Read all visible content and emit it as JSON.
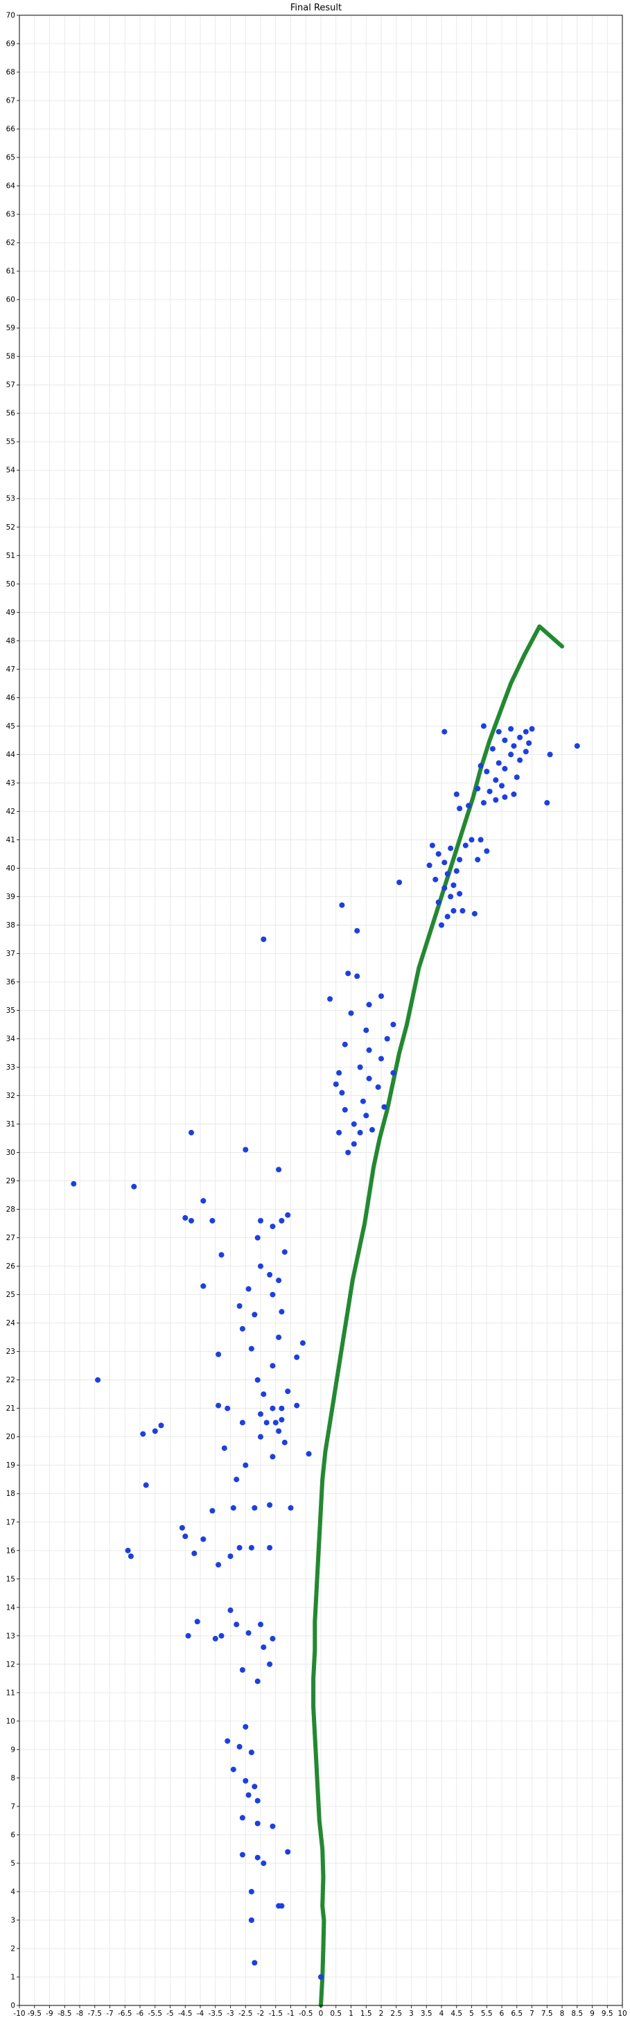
{
  "window": {
    "title": "Final Result"
  },
  "colors": {
    "background": "#ffffff",
    "grid": "#e4e4e4",
    "axis": "#000000",
    "track": "#1f8a2e",
    "points": "#1a3fe8"
  },
  "chart_data": {
    "type": "scatter",
    "title": "Final Result",
    "xlabel": "",
    "ylabel": "",
    "xlim": [
      -10,
      10
    ],
    "ylim": [
      0,
      70
    ],
    "x_tick_step": 0.5,
    "y_tick_step": 1,
    "grid": true,
    "x_tick_labels": [
      "-10",
      "-9.5",
      "-9",
      "-8.5",
      "-8",
      "-7.5",
      "-7",
      "-6.5",
      "-6",
      "-5.5",
      "-5",
      "-4.5",
      "-4",
      "-3.5",
      "-3",
      "-2.5",
      "-2",
      "-1.5",
      "-1",
      "-0.5",
      "0",
      "0.5",
      "1",
      "1.5",
      "2",
      "2.5",
      "3",
      "3.5",
      "4",
      "4.5",
      "5",
      "5.5",
      "6",
      "6.5",
      "7",
      "7.5",
      "8",
      "8.5",
      "9",
      "9.5",
      "10"
    ],
    "y_tick_labels": [
      "0",
      "1",
      "2",
      "3",
      "4",
      "5",
      "6",
      "7",
      "8",
      "9",
      "10",
      "11",
      "12",
      "13",
      "14",
      "15",
      "16",
      "17",
      "18",
      "19",
      "20",
      "21",
      "22",
      "23",
      "24",
      "25",
      "26",
      "27",
      "28",
      "29",
      "30",
      "31",
      "32",
      "33",
      "34",
      "35",
      "36",
      "37",
      "38",
      "39",
      "40",
      "41",
      "42",
      "43",
      "44",
      "45",
      "46",
      "47",
      "48",
      "49",
      "50",
      "51",
      "52",
      "53",
      "54",
      "55",
      "56",
      "57",
      "58",
      "59",
      "60",
      "61",
      "62",
      "63",
      "64",
      "65",
      "66",
      "67",
      "68",
      "69",
      "70"
    ],
    "track": [
      [
        0.0,
        0.0
      ],
      [
        0.05,
        1
      ],
      [
        0.08,
        2
      ],
      [
        0.1,
        3
      ],
      [
        0.05,
        3.5
      ],
      [
        0.08,
        4.5
      ],
      [
        0.05,
        5.5
      ],
      [
        -0.05,
        6.5
      ],
      [
        -0.1,
        7.5
      ],
      [
        -0.15,
        8.5
      ],
      [
        -0.2,
        9.5
      ],
      [
        -0.25,
        10.5
      ],
      [
        -0.25,
        11.5
      ],
      [
        -0.2,
        12.5
      ],
      [
        -0.2,
        13.5
      ],
      [
        -0.15,
        14.5
      ],
      [
        -0.1,
        15.5
      ],
      [
        -0.05,
        16.5
      ],
      [
        0.0,
        17.5
      ],
      [
        0.05,
        18.5
      ],
      [
        0.15,
        19.5
      ],
      [
        0.3,
        20.5
      ],
      [
        0.45,
        21.5
      ],
      [
        0.6,
        22.5
      ],
      [
        0.75,
        23.5
      ],
      [
        0.9,
        24.5
      ],
      [
        1.05,
        25.5
      ],
      [
        1.25,
        26.5
      ],
      [
        1.45,
        27.5
      ],
      [
        1.6,
        28.5
      ],
      [
        1.75,
        29.5
      ],
      [
        1.95,
        30.5
      ],
      [
        2.2,
        31.5
      ],
      [
        2.4,
        32.5
      ],
      [
        2.6,
        33.5
      ],
      [
        2.85,
        34.5
      ],
      [
        3.05,
        35.5
      ],
      [
        3.25,
        36.5
      ],
      [
        3.55,
        37.5
      ],
      [
        3.85,
        38.5
      ],
      [
        4.15,
        39.5
      ],
      [
        4.45,
        40.5
      ],
      [
        4.75,
        41.5
      ],
      [
        5.05,
        42.5
      ],
      [
        5.3,
        43.5
      ],
      [
        5.6,
        44.5
      ],
      [
        5.95,
        45.5
      ],
      [
        6.3,
        46.5
      ],
      [
        6.75,
        47.5
      ],
      [
        7.25,
        48.5
      ],
      [
        8.0,
        47.8
      ]
    ],
    "points": [
      [
        0.0,
        1.0
      ],
      [
        -2.2,
        1.5
      ],
      [
        -2.3,
        3.0
      ],
      [
        -1.3,
        3.5
      ],
      [
        -1.4,
        3.5
      ],
      [
        -2.3,
        4.0
      ],
      [
        -1.9,
        5.0
      ],
      [
        -2.1,
        5.2
      ],
      [
        -2.6,
        5.3
      ],
      [
        -1.1,
        5.4
      ],
      [
        -1.6,
        6.3
      ],
      [
        -2.1,
        6.4
      ],
      [
        -2.6,
        6.6
      ],
      [
        -2.1,
        7.2
      ],
      [
        -2.4,
        7.4
      ],
      [
        -2.2,
        7.7
      ],
      [
        -2.5,
        7.9
      ],
      [
        -2.9,
        8.3
      ],
      [
        -2.3,
        8.9
      ],
      [
        -2.7,
        9.1
      ],
      [
        -2.5,
        9.8
      ],
      [
        -3.1,
        9.3
      ],
      [
        -2.1,
        11.4
      ],
      [
        -2.6,
        11.8
      ],
      [
        -1.9,
        12.6
      ],
      [
        -1.6,
        12.9
      ],
      [
        -2.4,
        13.1
      ],
      [
        -2.0,
        13.4
      ],
      [
        -3.3,
        13.0
      ],
      [
        -2.8,
        13.4
      ],
      [
        -3.0,
        13.9
      ],
      [
        -3.5,
        12.9
      ],
      [
        -4.1,
        13.5
      ],
      [
        -4.4,
        13.0
      ],
      [
        -1.7,
        12.0
      ],
      [
        -3.4,
        15.5
      ],
      [
        -3.0,
        15.8
      ],
      [
        -2.7,
        16.1
      ],
      [
        -2.3,
        16.1
      ],
      [
        -1.7,
        16.1
      ],
      [
        -3.9,
        16.4
      ],
      [
        -4.2,
        15.9
      ],
      [
        -4.5,
        16.5
      ],
      [
        -6.3,
        15.8
      ],
      [
        -6.4,
        16.0
      ],
      [
        -4.6,
        16.8
      ],
      [
        -3.6,
        17.4
      ],
      [
        -2.9,
        17.5
      ],
      [
        -2.2,
        17.5
      ],
      [
        -1.7,
        17.6
      ],
      [
        -1.0,
        17.5
      ],
      [
        -5.8,
        18.3
      ],
      [
        -2.8,
        18.5
      ],
      [
        -2.5,
        19.0
      ],
      [
        -3.2,
        19.6
      ],
      [
        -1.6,
        19.3
      ],
      [
        -0.4,
        19.4
      ],
      [
        -1.2,
        19.8
      ],
      [
        -2.0,
        20.0
      ],
      [
        -1.4,
        20.2
      ],
      [
        -1.8,
        20.5
      ],
      [
        -1.5,
        20.5
      ],
      [
        -1.3,
        20.6
      ],
      [
        -2.6,
        20.5
      ],
      [
        -5.9,
        20.1
      ],
      [
        -5.5,
        20.2
      ],
      [
        -5.3,
        20.4
      ],
      [
        -2.0,
        20.8
      ],
      [
        -1.6,
        21.0
      ],
      [
        -1.3,
        21.0
      ],
      [
        -3.1,
        21.0
      ],
      [
        -3.4,
        21.1
      ],
      [
        -0.8,
        21.1
      ],
      [
        -1.9,
        21.5
      ],
      [
        -1.1,
        21.6
      ],
      [
        -7.4,
        22.0
      ],
      [
        -2.1,
        22.0
      ],
      [
        -1.6,
        22.5
      ],
      [
        -0.8,
        22.8
      ],
      [
        -3.4,
        22.9
      ],
      [
        -2.3,
        23.1
      ],
      [
        -0.6,
        23.3
      ],
      [
        -1.4,
        23.5
      ],
      [
        -2.6,
        23.8
      ],
      [
        -2.2,
        24.3
      ],
      [
        -1.3,
        24.4
      ],
      [
        -2.7,
        24.6
      ],
      [
        -1.6,
        25.0
      ],
      [
        -2.4,
        25.2
      ],
      [
        -3.9,
        25.3
      ],
      [
        -1.4,
        25.5
      ],
      [
        -1.7,
        25.7
      ],
      [
        -2.0,
        26.0
      ],
      [
        -3.3,
        26.4
      ],
      [
        -1.2,
        26.5
      ],
      [
        -2.1,
        27.0
      ],
      [
        -1.6,
        27.4
      ],
      [
        -2.0,
        27.6
      ],
      [
        -1.3,
        27.6
      ],
      [
        -1.1,
        27.8
      ],
      [
        -3.6,
        27.6
      ],
      [
        -4.3,
        27.6
      ],
      [
        -4.5,
        27.7
      ],
      [
        -3.9,
        28.3
      ],
      [
        -8.2,
        28.9
      ],
      [
        -6.2,
        28.8
      ],
      [
        -2.5,
        30.1
      ],
      [
        -1.4,
        29.4
      ],
      [
        -4.3,
        30.7
      ],
      [
        -1.9,
        37.5
      ],
      [
        0.9,
        30.0
      ],
      [
        1.1,
        30.3
      ],
      [
        0.6,
        30.7
      ],
      [
        1.3,
        30.7
      ],
      [
        1.7,
        30.8
      ],
      [
        1.1,
        31.0
      ],
      [
        1.5,
        31.3
      ],
      [
        0.8,
        31.5
      ],
      [
        2.1,
        31.6
      ],
      [
        1.4,
        31.8
      ],
      [
        0.7,
        32.1
      ],
      [
        1.9,
        32.3
      ],
      [
        0.5,
        32.4
      ],
      [
        1.6,
        32.6
      ],
      [
        2.4,
        32.8
      ],
      [
        0.6,
        32.8
      ],
      [
        1.3,
        33.0
      ],
      [
        2.0,
        33.3
      ],
      [
        1.6,
        33.6
      ],
      [
        0.8,
        33.8
      ],
      [
        2.2,
        34.0
      ],
      [
        1.5,
        34.3
      ],
      [
        2.4,
        34.5
      ],
      [
        1.0,
        34.9
      ],
      [
        1.6,
        35.2
      ],
      [
        2.0,
        35.5
      ],
      [
        1.2,
        36.2
      ],
      [
        0.9,
        36.3
      ],
      [
        0.3,
        35.4
      ],
      [
        1.2,
        37.8
      ],
      [
        0.7,
        38.7
      ],
      [
        2.6,
        39.5
      ],
      [
        4.0,
        38.0
      ],
      [
        4.2,
        38.3
      ],
      [
        4.4,
        38.5
      ],
      [
        4.7,
        38.5
      ],
      [
        5.1,
        38.4
      ],
      [
        3.9,
        38.8
      ],
      [
        4.3,
        39.0
      ],
      [
        4.6,
        39.1
      ],
      [
        4.1,
        39.3
      ],
      [
        4.4,
        39.4
      ],
      [
        3.8,
        39.6
      ],
      [
        4.2,
        39.8
      ],
      [
        4.5,
        39.9
      ],
      [
        3.6,
        40.1
      ],
      [
        4.1,
        40.2
      ],
      [
        4.6,
        40.3
      ],
      [
        3.9,
        40.5
      ],
      [
        4.3,
        40.7
      ],
      [
        5.2,
        40.3
      ],
      [
        5.5,
        40.6
      ],
      [
        4.8,
        40.8
      ],
      [
        3.7,
        40.8
      ],
      [
        5.3,
        41.0
      ],
      [
        5.0,
        41.0
      ],
      [
        4.6,
        42.1
      ],
      [
        4.9,
        42.2
      ],
      [
        5.4,
        42.3
      ],
      [
        5.8,
        42.4
      ],
      [
        6.1,
        42.5
      ],
      [
        6.4,
        42.6
      ],
      [
        5.6,
        42.7
      ],
      [
        6.0,
        42.9
      ],
      [
        4.5,
        42.6
      ],
      [
        5.2,
        42.8
      ],
      [
        5.8,
        43.1
      ],
      [
        6.5,
        43.2
      ],
      [
        5.5,
        43.4
      ],
      [
        6.1,
        43.5
      ],
      [
        5.9,
        43.7
      ],
      [
        6.6,
        43.8
      ],
      [
        5.3,
        43.6
      ],
      [
        6.3,
        44.0
      ],
      [
        6.8,
        44.1
      ],
      [
        5.7,
        44.2
      ],
      [
        6.4,
        44.3
      ],
      [
        6.9,
        44.4
      ],
      [
        6.1,
        44.5
      ],
      [
        6.6,
        44.6
      ],
      [
        5.9,
        44.8
      ],
      [
        6.3,
        44.9
      ],
      [
        6.8,
        44.8
      ],
      [
        7.0,
        44.9
      ],
      [
        5.4,
        45.0
      ],
      [
        4.1,
        44.8
      ],
      [
        7.6,
        44.0
      ],
      [
        7.5,
        42.3
      ],
      [
        8.5,
        44.3
      ]
    ]
  }
}
